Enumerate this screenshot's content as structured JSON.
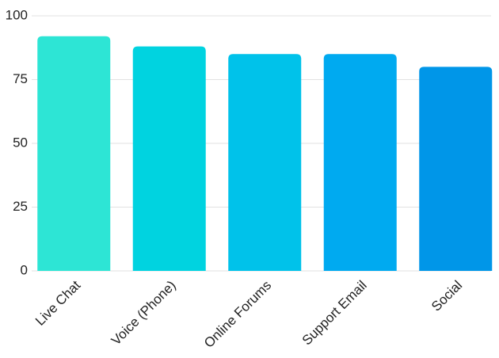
{
  "chart_data": {
    "type": "bar",
    "categories": [
      "Live Chat",
      "Voice (Phone)",
      "Online Forums",
      "Support Email",
      "Social"
    ],
    "values": [
      92,
      88,
      85,
      85,
      80
    ],
    "colors": [
      "#2de5d5",
      "#00d3e0",
      "#00c2ea",
      "#00aaf0",
      "#0096e8"
    ],
    "ylim": [
      0,
      100
    ],
    "yticks": [
      0,
      25,
      50,
      75,
      100
    ],
    "grid": true
  }
}
